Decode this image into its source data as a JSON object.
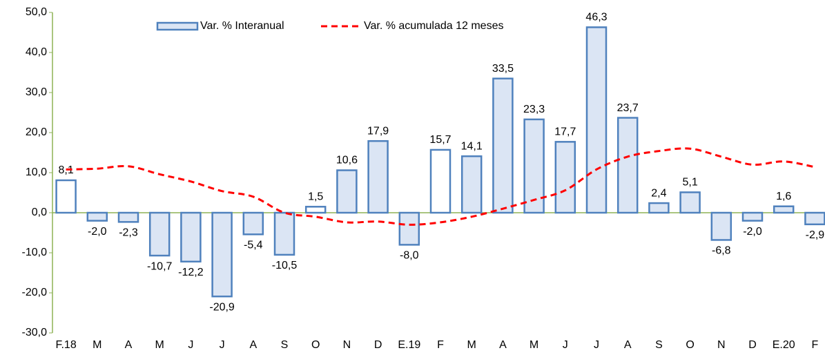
{
  "chart_data": {
    "type": "bar",
    "categories": [
      "F.18",
      "M",
      "A",
      "M",
      "J",
      "J",
      "A",
      "S",
      "O",
      "N",
      "D",
      "E.19",
      "F",
      "M",
      "A",
      "M",
      "J",
      "J",
      "A",
      "S",
      "O",
      "N",
      "D",
      "E.20",
      "F"
    ],
    "series": [
      {
        "name": "Var. % Interanual",
        "type": "bar",
        "color": "#dbe5f4",
        "stroke": "#4f81bd",
        "fill_colors": [
          "#ffffff",
          "#dbe5f4",
          "#dbe5f4",
          "#dbe5f4",
          "#dbe5f4",
          "#dbe5f4",
          "#dbe5f4",
          "#dbe5f4",
          "#ffffff",
          "#dbe5f4",
          "#dbe5f4",
          "#dbe5f4",
          "#ffffff",
          "#dbe5f4",
          "#dbe5f4",
          "#dbe5f4",
          "#dbe5f4",
          "#dbe5f4",
          "#dbe5f4",
          "#dbe5f4",
          "#dbe5f4",
          "#dbe5f4",
          "#dbe5f4",
          "#dbe5f4",
          "#dbe5f4"
        ],
        "values": [
          8.1,
          -2.0,
          -2.3,
          -10.7,
          -12.2,
          -20.9,
          -5.4,
          -10.5,
          1.5,
          10.6,
          17.9,
          -8.0,
          15.7,
          14.1,
          33.5,
          23.3,
          17.7,
          46.3,
          23.7,
          2.4,
          5.1,
          -6.8,
          -2.0,
          1.6,
          -2.9
        ],
        "value_labels": [
          "8,1",
          "-2,0",
          "-2,3",
          "-10,7",
          "-12,2",
          "-20,9",
          "-5,4",
          "-10,5",
          "1,5",
          "10,6",
          "17,9",
          "-8,0",
          "15,7",
          "14,1",
          "33,5",
          "23,3",
          "17,7",
          "46,3",
          "23,7",
          "2,4",
          "5,1",
          "-6,8",
          "-2,0",
          "1,6",
          "-2,9"
        ]
      },
      {
        "name": "Var. % acumulada 12 meses",
        "type": "line",
        "color": "#ff0000",
        "dashed": true,
        "values": [
          10.8,
          11.0,
          11.6,
          9.6,
          7.8,
          5.4,
          4.0,
          0.0,
          -1.0,
          -2.4,
          -2.2,
          -3.0,
          -2.4,
          -1.0,
          1.0,
          3.2,
          5.6,
          10.8,
          14.0,
          15.4,
          16.0,
          14.0,
          12.0,
          12.8,
          11.4
        ]
      }
    ],
    "ylim": [
      -30,
      50
    ],
    "yticks": [
      {
        "value": -30,
        "label": "-30,0"
      },
      {
        "value": -20,
        "label": "-20,0"
      },
      {
        "value": -10,
        "label": "-10,0"
      },
      {
        "value": 0,
        "label": "0,0"
      },
      {
        "value": 10,
        "label": "10,0"
      },
      {
        "value": 20,
        "label": "20,0"
      },
      {
        "value": 30,
        "label": "30,0"
      },
      {
        "value": 40,
        "label": "40,0"
      },
      {
        "value": 50,
        "label": "50,0"
      }
    ],
    "axis_color": "#8db255"
  }
}
